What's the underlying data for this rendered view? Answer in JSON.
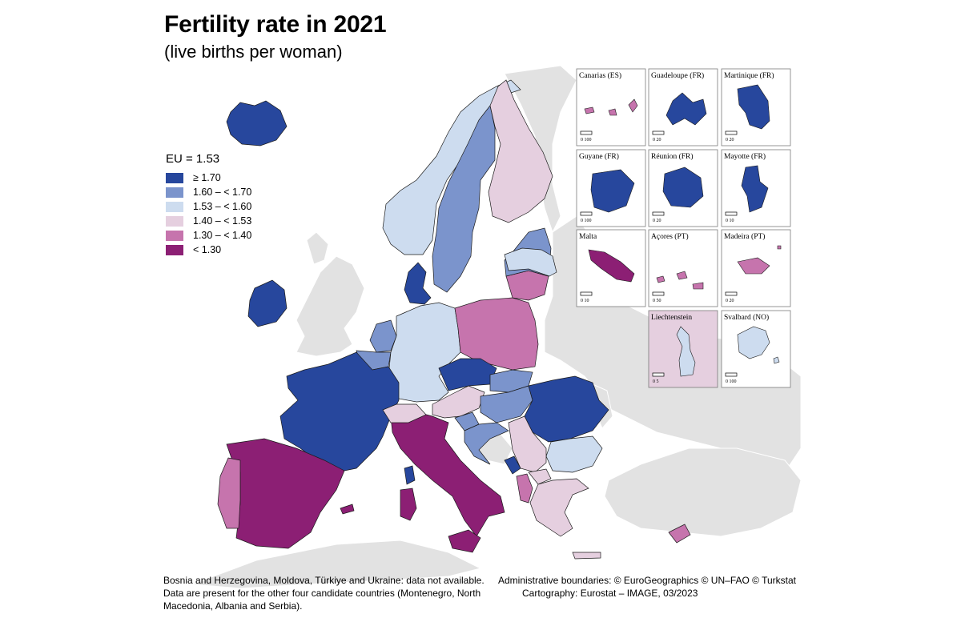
{
  "header": {
    "title": "Fertility rate in 2021",
    "subtitle": "(live births per woman)"
  },
  "legend": {
    "eu_average": "EU = 1.53",
    "classes": [
      {
        "label": "≥ 1.70",
        "color": "#27479d"
      },
      {
        "label": "1.60 – < 1.70",
        "color": "#7b94cc"
      },
      {
        "label": "1.53 – < 1.60",
        "color": "#cddcef"
      },
      {
        "label": "1.40 – < 1.53",
        "color": "#e5cfdf"
      },
      {
        "label": "1.30 – < 1.40",
        "color": "#c674ad"
      },
      {
        "label": "< 1.30",
        "color": "#8c1f74"
      }
    ]
  },
  "map": {
    "background_sea": "#ffffff",
    "non_data_land": "#e2e2e2",
    "countries": [
      {
        "name": "Iceland",
        "class": "≥ 1.70"
      },
      {
        "name": "Ireland",
        "class": "≥ 1.70"
      },
      {
        "name": "France",
        "class": "≥ 1.70"
      },
      {
        "name": "Denmark",
        "class": "≥ 1.70"
      },
      {
        "name": "Czechia",
        "class": "≥ 1.70"
      },
      {
        "name": "Romania",
        "class": "≥ 1.70"
      },
      {
        "name": "Montenegro",
        "class": "≥ 1.70"
      },
      {
        "name": "Sweden",
        "class": "1.60 – < 1.70"
      },
      {
        "name": "Latvia",
        "class": "1.60 – < 1.70"
      },
      {
        "name": "Belgium",
        "class": "1.60 – < 1.70"
      },
      {
        "name": "Netherlands",
        "class": "1.60 – < 1.70"
      },
      {
        "name": "Slovakia",
        "class": "1.60 – < 1.70"
      },
      {
        "name": "Hungary",
        "class": "1.60 – < 1.70"
      },
      {
        "name": "Slovenia",
        "class": "1.60 – < 1.70"
      },
      {
        "name": "Croatia",
        "class": "1.60 – < 1.70"
      },
      {
        "name": "Norway",
        "class": "1.53 – < 1.60"
      },
      {
        "name": "Germany",
        "class": "1.53 – < 1.60"
      },
      {
        "name": "Estonia",
        "class": "1.53 – < 1.60"
      },
      {
        "name": "Bulgaria",
        "class": "1.53 – < 1.60"
      },
      {
        "name": "Finland",
        "class": "1.40 – < 1.53"
      },
      {
        "name": "Austria",
        "class": "1.40 – < 1.53"
      },
      {
        "name": "Switzerland",
        "class": "1.40 – < 1.53"
      },
      {
        "name": "Serbia",
        "class": "1.40 – < 1.53"
      },
      {
        "name": "Greece",
        "class": "1.40 – < 1.53"
      },
      {
        "name": "North Macedonia",
        "class": "1.40 – < 1.53"
      },
      {
        "name": "Poland",
        "class": "1.30 – < 1.40"
      },
      {
        "name": "Lithuania",
        "class": "1.30 – < 1.40"
      },
      {
        "name": "Portugal",
        "class": "1.30 – < 1.40"
      },
      {
        "name": "Albania",
        "class": "1.30 – < 1.40"
      },
      {
        "name": "Cyprus",
        "class": "1.30 – < 1.40"
      },
      {
        "name": "Spain",
        "class": "< 1.30"
      },
      {
        "name": "Italy",
        "class": "< 1.30"
      }
    ]
  },
  "insets": [
    {
      "label": "Canarias (ES)",
      "scale": "0   100"
    },
    {
      "label": "Guadeloupe (FR)",
      "scale": "0   20"
    },
    {
      "label": "Martinique (FR)",
      "scale": "0   20"
    },
    {
      "label": "Guyane (FR)",
      "scale": "0   100"
    },
    {
      "label": "Réunion (FR)",
      "scale": "0   20"
    },
    {
      "label": "Mayotte (FR)",
      "scale": "0   10"
    },
    {
      "label": "Malta",
      "scale": "0   10"
    },
    {
      "label": "Açores (PT)",
      "scale": "0   50"
    },
    {
      "label": "Madeira (PT)",
      "scale": "0   20"
    },
    {
      "label": "Liechtenstein",
      "scale": "0   5"
    },
    {
      "label": "Svalbard (NO)",
      "scale": "0   100"
    }
  ],
  "footer": {
    "note_line1": "Bosnia and Herzegovina, Moldova, Türkiye and Ukraine: data not available.",
    "note_line2": "Data are present for the other four candidate countries (Montenegro, North Macedonia, Albania and Serbia).",
    "credits_line1": "Administrative boundaries: © EuroGeographics © UN–FAO © Turkstat",
    "credits_line2": "Cartography: Eurostat – IMAGE, 03/2023"
  }
}
